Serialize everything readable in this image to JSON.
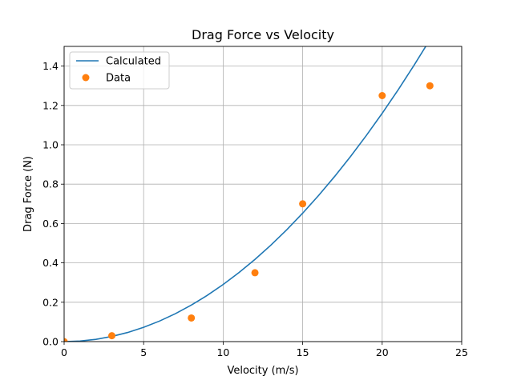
{
  "chart_data": {
    "type": "line+scatter",
    "title": "Drag Force vs Velocity",
    "xlabel": "Velocity (m/s)",
    "ylabel": "Drag Force (N)",
    "xlim": [
      0,
      25
    ],
    "ylim": [
      0,
      1.5
    ],
    "xticks": [
      "0",
      "5",
      "10",
      "15",
      "20",
      "25"
    ],
    "yticks": [
      "0.0",
      "0.2",
      "0.4",
      "0.6",
      "0.8",
      "1.0",
      "1.2",
      "1.4"
    ],
    "grid": true,
    "legend_position": "top-left",
    "series": [
      {
        "name": "Calculated",
        "kind": "line",
        "color": "#1f77b4",
        "x": [
          0,
          1,
          2,
          3,
          4,
          5,
          6,
          7,
          8,
          9,
          10,
          11,
          12,
          13,
          14,
          15,
          16,
          17,
          18,
          19,
          20,
          21,
          22,
          23
        ],
        "y": [
          0,
          0.0029,
          0.0116,
          0.0261,
          0.0464,
          0.0725,
          0.1044,
          0.1421,
          0.1856,
          0.2349,
          0.29,
          0.3509,
          0.4176,
          0.4901,
          0.5684,
          0.6525,
          0.7424,
          0.8381,
          0.9396,
          1.0469,
          1.16,
          1.2789,
          1.4036,
          1.5341
        ]
      },
      {
        "name": "Data",
        "kind": "scatter",
        "color": "#ff7f0e",
        "x": [
          0,
          3,
          8,
          12,
          15,
          20,
          23
        ],
        "y": [
          0.0,
          0.03,
          0.12,
          0.35,
          0.7,
          1.25,
          1.3
        ]
      }
    ]
  }
}
